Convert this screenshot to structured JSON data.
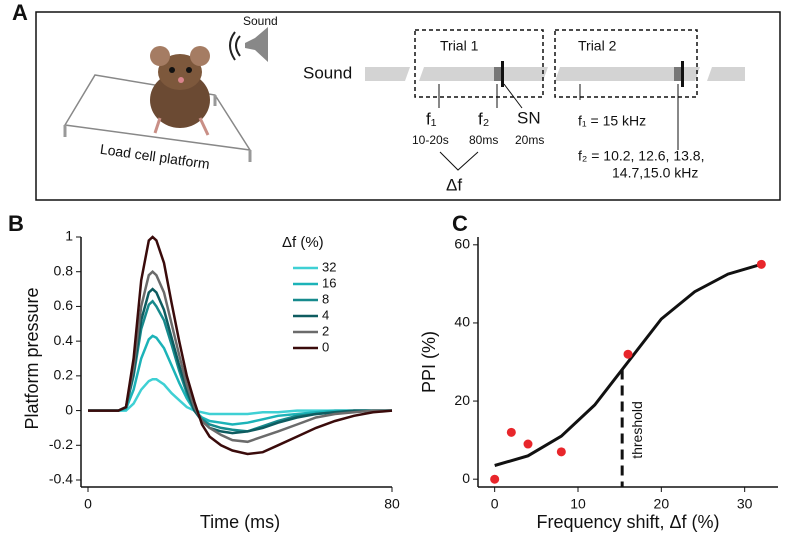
{
  "panel_labels": [
    "A",
    "B",
    "C"
  ],
  "diagram": {
    "speaker_label": "Sound",
    "platform_label": "Load cell platform",
    "track_label": "Sound",
    "trial1": "Trial 1",
    "trial2": "Trial 2",
    "f1": "f₁",
    "f1_time": "10-20s",
    "f2": "f₂",
    "f2_time": "80ms",
    "sn": "SN",
    "sn_time": "20ms",
    "delta_f": "Δf",
    "f1_value": "f₁ = 15 kHz",
    "f2_values_1": "f₂ = 10.2, 12.6, 13.8,",
    "f2_values_2": "14.7,15.0 kHz"
  },
  "chart_data": [
    {
      "type": "line",
      "xlabel": "Time (ms)",
      "ylabel": "Platform pressure",
      "legend_title": "Δf (%)",
      "x": [
        0,
        8,
        10,
        12,
        14,
        16,
        17,
        18,
        20,
        22,
        24,
        26,
        28,
        30,
        32,
        35,
        38,
        42,
        46,
        50,
        55,
        60,
        65,
        70,
        75,
        80
      ],
      "xlim": [
        0,
        80
      ],
      "xticks": [
        0,
        80
      ],
      "ylim": [
        -0.4,
        1
      ],
      "yticks": [
        -0.4,
        -0.2,
        0,
        0.2,
        0.4,
        0.6,
        0.8,
        1
      ],
      "series": [
        {
          "name": "32",
          "color": "#3fd0d4",
          "values": [
            0,
            0,
            0,
            0.04,
            0.12,
            0.17,
            0.18,
            0.18,
            0.15,
            0.1,
            0.06,
            0.02,
            0,
            -0.01,
            -0.02,
            -0.02,
            -0.02,
            -0.02,
            -0.01,
            -0.01,
            0,
            0,
            0,
            0,
            0,
            0
          ]
        },
        {
          "name": "16",
          "color": "#1cb3b8",
          "values": [
            0,
            0,
            0.01,
            0.12,
            0.3,
            0.41,
            0.43,
            0.42,
            0.36,
            0.26,
            0.16,
            0.07,
            0,
            -0.04,
            -0.06,
            -0.07,
            -0.08,
            -0.07,
            -0.05,
            -0.03,
            -0.02,
            -0.01,
            0,
            0,
            0,
            0
          ]
        },
        {
          "name": "8",
          "color": "#178a8d",
          "values": [
            0,
            0,
            0.02,
            0.2,
            0.47,
            0.61,
            0.63,
            0.6,
            0.52,
            0.38,
            0.23,
            0.1,
            0,
            -0.05,
            -0.08,
            -0.1,
            -0.11,
            -0.12,
            -0.09,
            -0.06,
            -0.03,
            -0.02,
            -0.01,
            0,
            0,
            0
          ]
        },
        {
          "name": "4",
          "color": "#0e5c60",
          "values": [
            0,
            0,
            0.02,
            0.22,
            0.52,
            0.68,
            0.7,
            0.68,
            0.58,
            0.42,
            0.26,
            0.12,
            0,
            -0.06,
            -0.1,
            -0.12,
            -0.13,
            -0.12,
            -0.1,
            -0.07,
            -0.04,
            -0.02,
            -0.01,
            0,
            0,
            0
          ]
        },
        {
          "name": "2",
          "color": "#6b6b6b",
          "values": [
            0,
            0,
            0.02,
            0.25,
            0.6,
            0.78,
            0.8,
            0.78,
            0.68,
            0.5,
            0.32,
            0.15,
            0.02,
            -0.06,
            -0.1,
            -0.14,
            -0.17,
            -0.18,
            -0.15,
            -0.12,
            -0.08,
            -0.04,
            -0.02,
            -0.01,
            0,
            0
          ]
        },
        {
          "name": "0",
          "color": "#3a0b0b",
          "values": [
            0,
            0,
            0.02,
            0.3,
            0.75,
            0.98,
            1,
            0.98,
            0.85,
            0.62,
            0.4,
            0.2,
            0.05,
            -0.08,
            -0.15,
            -0.2,
            -0.23,
            -0.25,
            -0.24,
            -0.2,
            -0.15,
            -0.1,
            -0.06,
            -0.03,
            -0.01,
            0
          ]
        }
      ]
    },
    {
      "type": "scatter",
      "xlabel": "Frequency shift, Δf (%)",
      "ylabel": "PPI (%)",
      "x": [
        0,
        2,
        4,
        8,
        16,
        32
      ],
      "values": [
        0,
        12,
        9,
        7,
        32,
        55
      ],
      "color": "#e8262b",
      "curve": {
        "x": [
          0,
          4,
          8,
          12,
          16,
          20,
          24,
          28,
          32
        ],
        "y": [
          3.5,
          6,
          11,
          19,
          30,
          41,
          48,
          52.5,
          55
        ]
      },
      "threshold": {
        "value": 15.3,
        "label": "threshold"
      },
      "xlim": [
        -2,
        34
      ],
      "xticks": [
        0,
        10,
        20,
        30
      ],
      "ylim": [
        -2,
        62
      ],
      "yticks": [
        0,
        20,
        40,
        60
      ]
    }
  ]
}
